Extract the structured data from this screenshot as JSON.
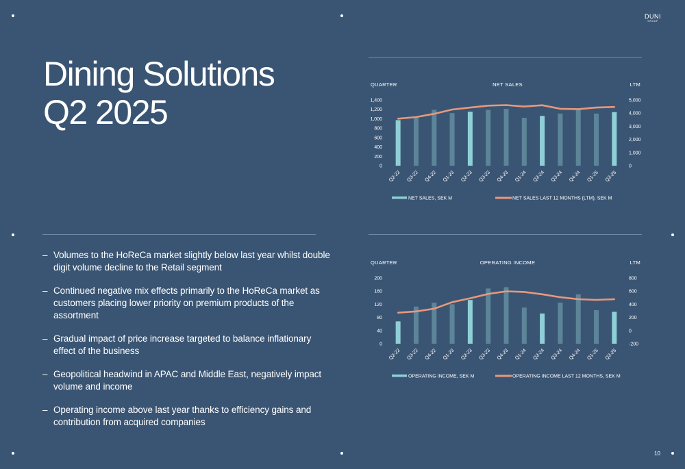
{
  "logo": {
    "main": "DUNI",
    "sub": "GROUP"
  },
  "title": {
    "line1": "Dining Solutions",
    "line2": "Q2 2025"
  },
  "bullets": [
    "Volumes to the HoReCa market slightly below last year whilst double digit volume decline to the Retail segment",
    "Continued negative mix effects primarily to the HoReCa market as customers placing lower priority on premium products of the assortment",
    "Gradual impact of price increase targeted to balance inflationary effect of the business",
    "Geopolitical headwind in APAC and Middle East, negatively impact volume and income",
    "Operating income above last year thanks to efficiency gains and contribution from acquired companies"
  ],
  "page_number": "10",
  "colors": {
    "background": "#3a5573",
    "bar_highlight": "#8fd0d8",
    "bar_regular": "#5c8599",
    "line": "#e9987a"
  },
  "chart_data": [
    {
      "type": "bar",
      "title": "NET SALES",
      "left_caption": "QUARTER",
      "right_caption": "LTM",
      "categories": [
        "Q2-22",
        "Q3-22",
        "Q4-22",
        "Q1-23",
        "Q2-23",
        "Q3-23",
        "Q4-23",
        "Q1-24",
        "Q2-24",
        "Q3-24",
        "Q4-24",
        "Q1-25",
        "Q2-25"
      ],
      "highlight": [
        true,
        false,
        false,
        false,
        true,
        false,
        false,
        false,
        true,
        false,
        false,
        false,
        true
      ],
      "series": [
        {
          "name": "NET SALES, SEK M",
          "axis": "left",
          "type": "bar",
          "values": [
            970,
            1020,
            1190,
            1120,
            1150,
            1190,
            1210,
            1020,
            1060,
            1110,
            1210,
            1110,
            1140
          ]
        },
        {
          "name": "NET SALES LAST 12 MONTHS (LTM), SEK M",
          "axis": "right",
          "type": "line",
          "values": [
            3580,
            3700,
            3950,
            4270,
            4420,
            4570,
            4610,
            4500,
            4600,
            4330,
            4300,
            4420,
            4470
          ]
        }
      ],
      "ylim_left": [
        0,
        1400
      ],
      "yticks_left": [
        "0",
        "200",
        "400",
        "600",
        "800",
        "1,000",
        "1,200",
        "1,400"
      ],
      "ylim_right": [
        0,
        5000
      ],
      "yticks_right": [
        "0",
        "1,000",
        "2,000",
        "3,000",
        "4,000",
        "5,000"
      ],
      "legend": "bottom"
    },
    {
      "type": "bar",
      "title": "OPERATING INCOME",
      "left_caption": "QUARTER",
      "right_caption": "LTM",
      "categories": [
        "Q2-22",
        "Q3-22",
        "Q4-22",
        "Q1-23",
        "Q2-23",
        "Q3-23",
        "Q4-23",
        "Q1-24",
        "Q2-24",
        "Q3-24",
        "Q4-24",
        "Q1-25",
        "Q2-25"
      ],
      "highlight": [
        true,
        false,
        false,
        false,
        true,
        false,
        false,
        false,
        true,
        false,
        false,
        false,
        true
      ],
      "series": [
        {
          "name": "OPERATING INCOME, SEK M",
          "axis": "left",
          "type": "bar",
          "values": [
            68,
            113,
            125,
            120,
            133,
            168,
            172,
            110,
            92,
            125,
            150,
            102,
            97
          ]
        },
        {
          "name": "OPERATING INCOME LAST 12 MONTHS, SEK M",
          "axis": "right",
          "type": "line",
          "values": [
            272,
            292,
            332,
            432,
            492,
            557,
            597,
            587,
            552,
            507,
            477,
            467,
            477
          ]
        }
      ],
      "ylim_left": [
        0,
        200
      ],
      "yticks_left": [
        "0",
        "40",
        "80",
        "120",
        "160",
        "200"
      ],
      "ylim_right": [
        -200,
        800
      ],
      "yticks_right": [
        "-200",
        "0",
        "200",
        "400",
        "600",
        "800"
      ],
      "legend": "bottom"
    }
  ]
}
